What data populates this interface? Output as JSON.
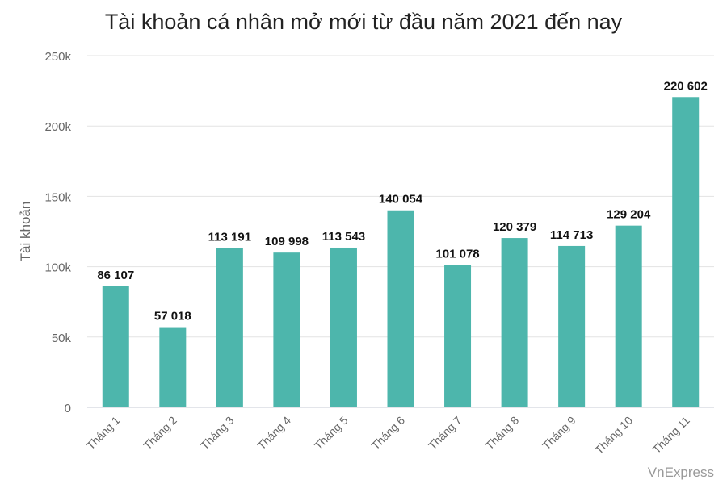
{
  "chart_data": {
    "type": "bar",
    "title": "Tài khoản cá nhân mở mới từ đầu năm 2021 đến nay",
    "xlabel": "",
    "ylabel": "Tài khoản",
    "ylim": [
      0,
      250000
    ],
    "yticks": [
      0,
      50000,
      100000,
      150000,
      200000,
      250000
    ],
    "ytick_labels": [
      "0",
      "50k",
      "100k",
      "150k",
      "200k",
      "250k"
    ],
    "grid": true,
    "categories": [
      "Tháng 1",
      "Tháng 2",
      "Tháng 3",
      "Tháng 4",
      "Tháng 5",
      "Tháng 6",
      "Tháng 7",
      "Tháng 8",
      "Tháng 9",
      "Tháng 10",
      "Tháng 11"
    ],
    "values": [
      86107,
      57018,
      113191,
      109998,
      113543,
      140054,
      101078,
      120379,
      114713,
      129204,
      220602
    ],
    "data_labels": [
      "86 107",
      "57 018",
      "113 191",
      "109 998",
      "113 543",
      "140 054",
      "101 078",
      "120 379",
      "114 713",
      "129 204",
      "220 602"
    ],
    "bar_color": "#4db6ac"
  },
  "source": "VnExpress"
}
